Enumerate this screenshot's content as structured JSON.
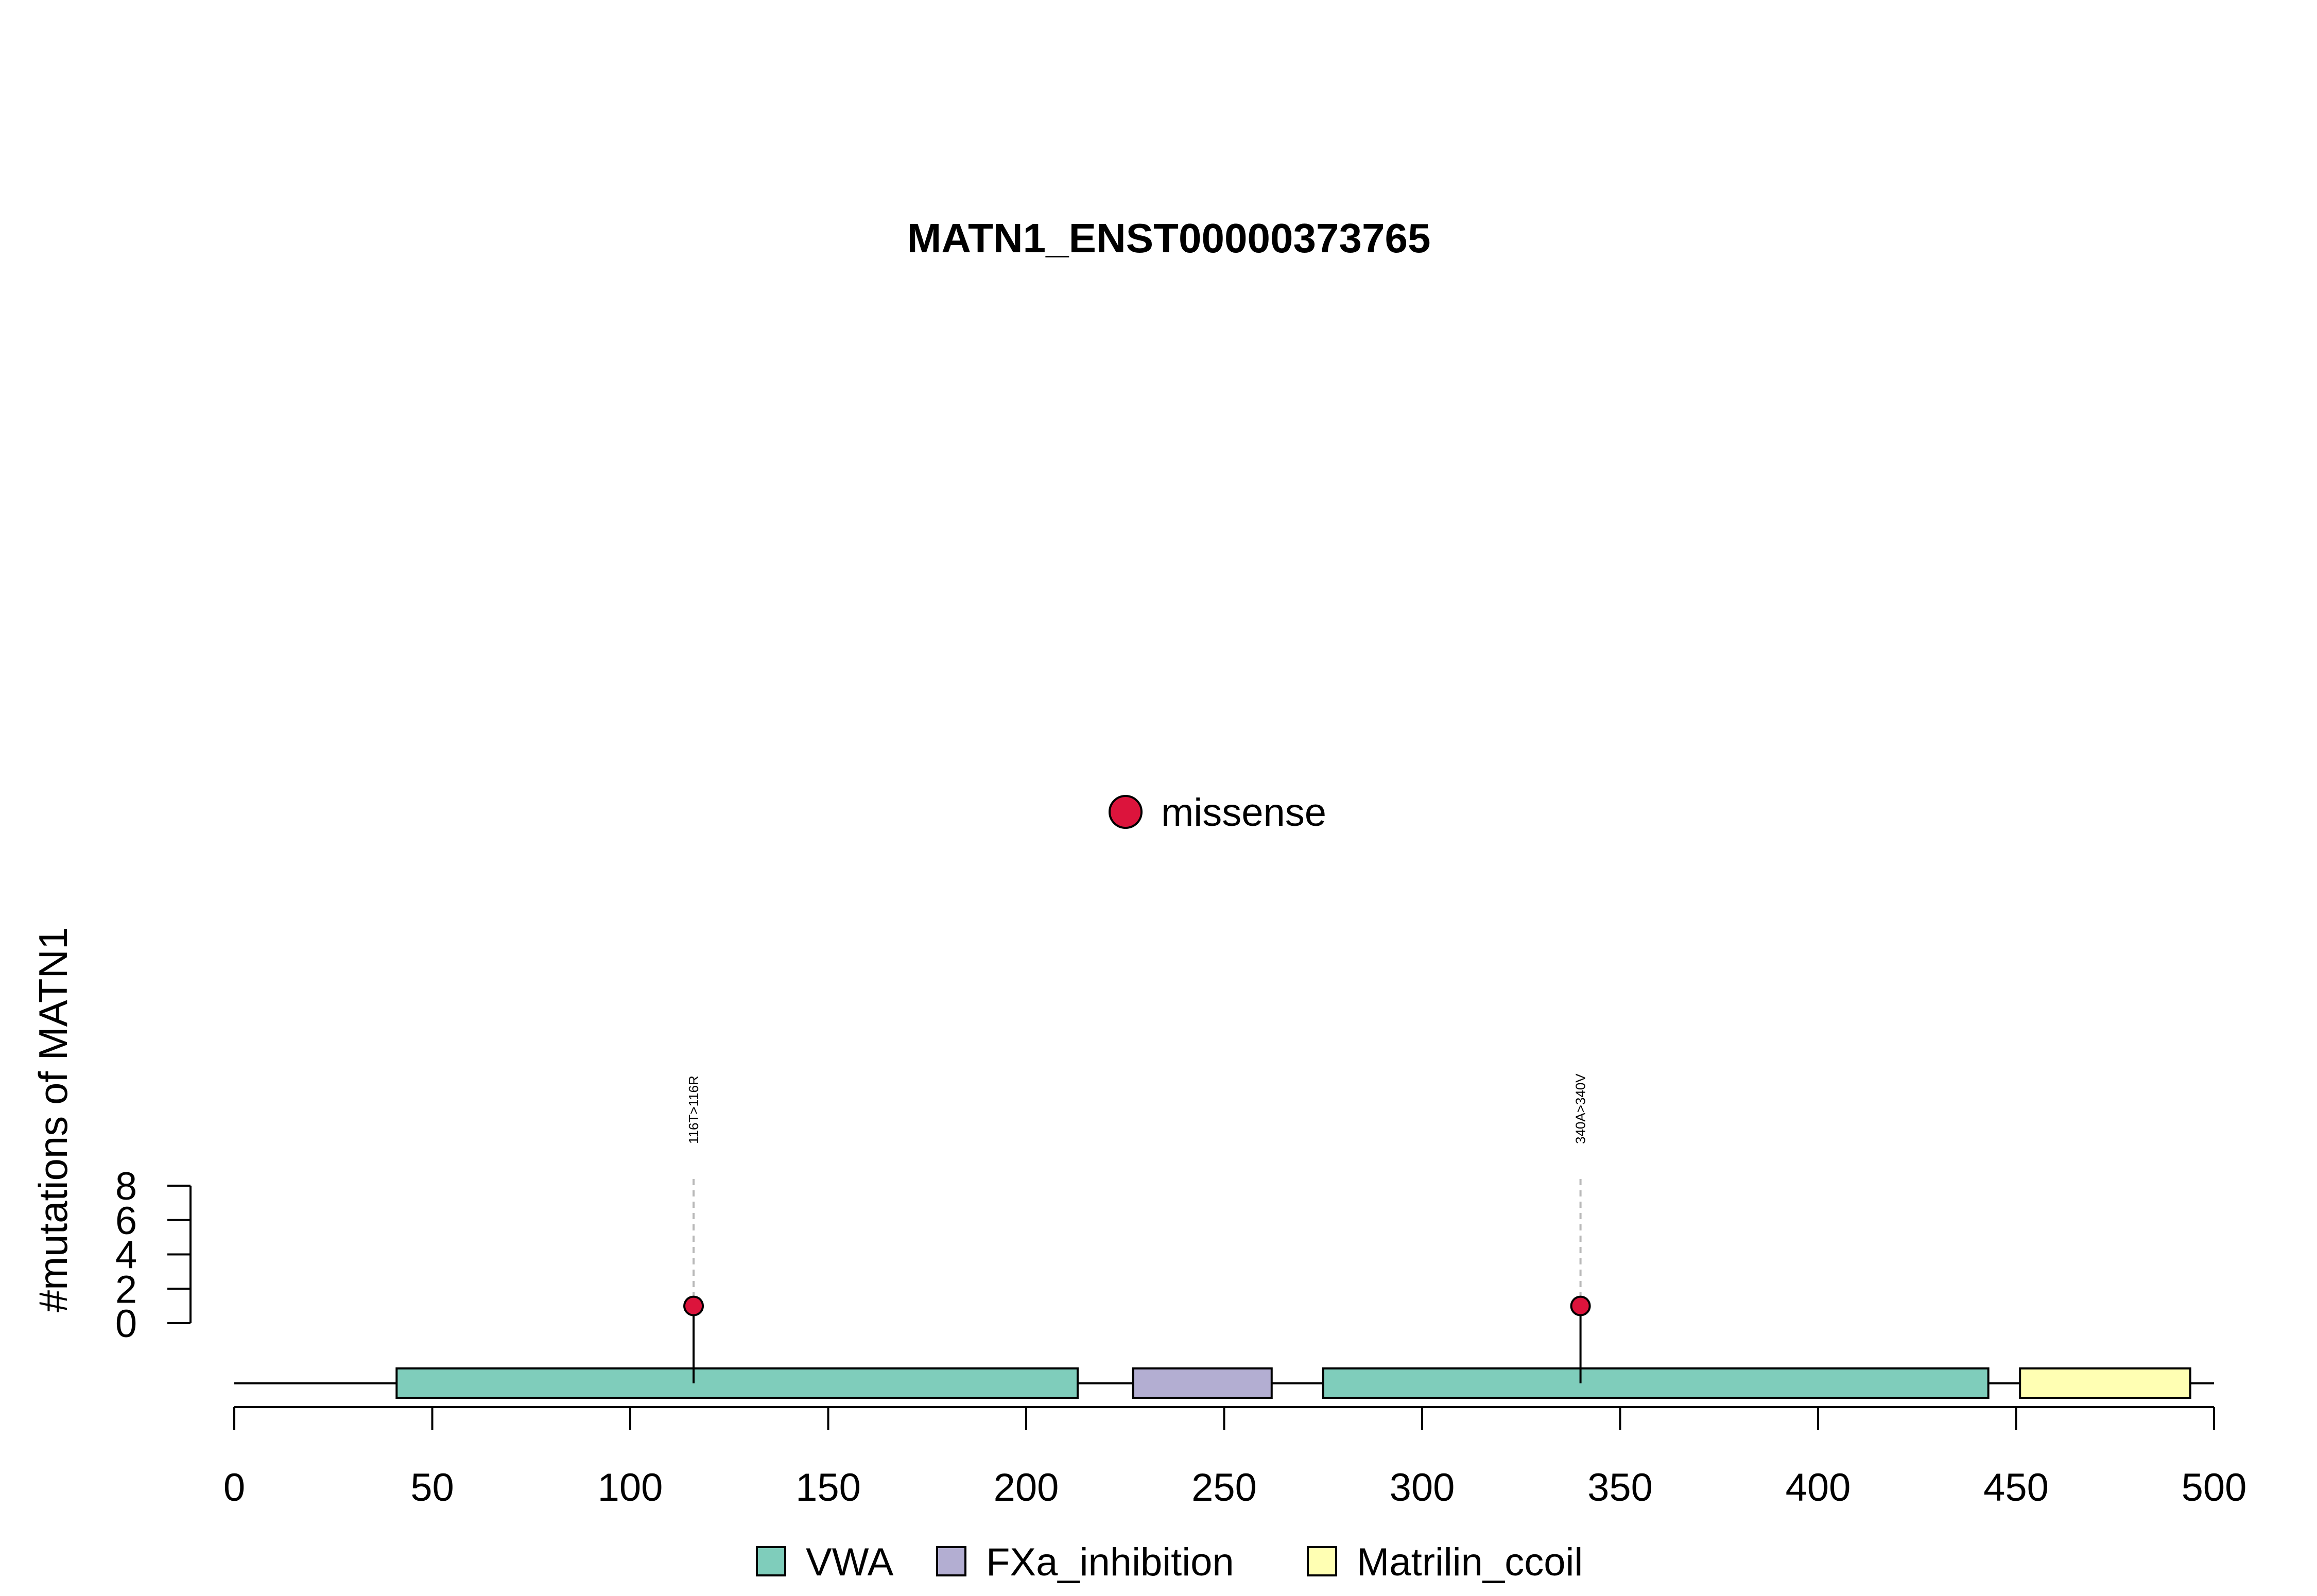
{
  "chart_data": {
    "type": "lollipop",
    "title": "MATN1_ENST00000373765",
    "ylabel": "#mutations of MATN1",
    "xlim": [
      0,
      500
    ],
    "x_ticks": [
      0,
      50,
      100,
      150,
      200,
      250,
      300,
      350,
      400,
      450,
      500
    ],
    "ylim": [
      0,
      8
    ],
    "y_ticks": [
      0,
      2,
      4,
      6,
      8
    ],
    "protein_length": 500,
    "mutation_legend": [
      {
        "label": "missense",
        "color": "#dc143c"
      }
    ],
    "mutations": [
      {
        "position": 116,
        "count": 1,
        "label": "116T>116R",
        "type": "missense"
      },
      {
        "position": 340,
        "count": 1,
        "label": "340A>340V",
        "type": "missense"
      }
    ],
    "domains": [
      {
        "name": "VWA",
        "start": 41,
        "end": 213,
        "color": "#7fcdbb"
      },
      {
        "name": "FXa_inhibition",
        "start": 227,
        "end": 262,
        "color": "#b3aed2"
      },
      {
        "name": "VWA",
        "start": 275,
        "end": 443,
        "color": "#7fcdbb"
      },
      {
        "name": "Matrilin_ccoil",
        "start": 451,
        "end": 494,
        "color": "#ffffb3"
      }
    ],
    "domain_legend": [
      {
        "label": "VWA",
        "color": "#7fcdbb"
      },
      {
        "label": "FXa_inhibition",
        "color": "#b3aed2"
      },
      {
        "label": "Matrilin_ccoil",
        "color": "#ffffb3"
      }
    ]
  }
}
